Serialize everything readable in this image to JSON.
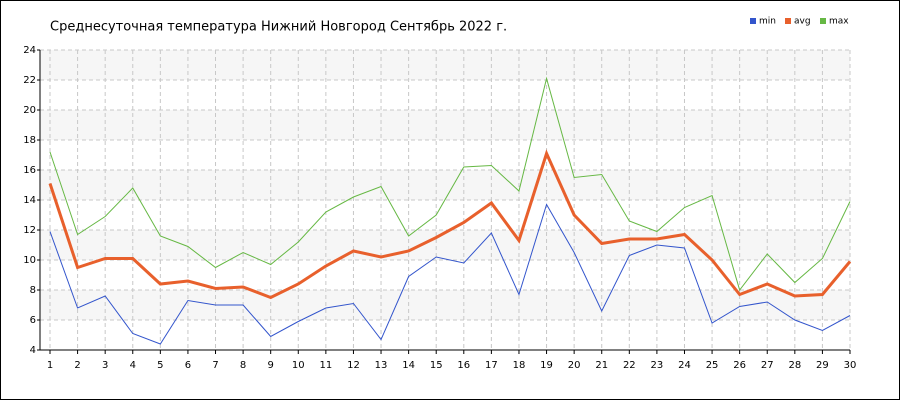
{
  "chart_data": {
    "type": "line",
    "title": "Среднесуточная температура Нижний Новгород  Сентябрь 2022 г.",
    "x": [
      1,
      2,
      3,
      4,
      5,
      6,
      7,
      8,
      9,
      10,
      11,
      12,
      13,
      14,
      15,
      16,
      17,
      18,
      19,
      20,
      21,
      22,
      23,
      24,
      25,
      26,
      27,
      28,
      29,
      30
    ],
    "series": [
      {
        "name": "min",
        "color": "#3355cc",
        "values": [
          11.9,
          6.8,
          7.6,
          5.1,
          4.4,
          7.3,
          7.0,
          7.0,
          4.9,
          5.9,
          6.8,
          7.1,
          4.7,
          8.9,
          10.2,
          9.8,
          11.8,
          7.7,
          13.7,
          10.5,
          6.6,
          10.3,
          11.0,
          10.8,
          5.8,
          6.9,
          7.2,
          6.0,
          5.3,
          6.3
        ]
      },
      {
        "name": "avg",
        "color": "#e8602c",
        "values": [
          15.1,
          9.5,
          10.1,
          10.1,
          8.4,
          8.6,
          8.1,
          8.2,
          7.5,
          8.4,
          9.6,
          10.6,
          10.2,
          10.6,
          11.5,
          12.5,
          13.8,
          11.3,
          17.1,
          13.0,
          11.1,
          11.4,
          11.4,
          11.7,
          10.0,
          7.7,
          8.4,
          7.6,
          7.7,
          9.9
        ]
      },
      {
        "name": "max",
        "color": "#66b844",
        "values": [
          17.2,
          11.7,
          12.9,
          14.8,
          11.6,
          10.9,
          9.5,
          10.5,
          9.7,
          11.2,
          13.2,
          14.2,
          14.9,
          11.6,
          13.0,
          16.2,
          16.3,
          14.6,
          22.1,
          15.5,
          15.7,
          12.6,
          11.9,
          13.5,
          14.3,
          8.0,
          10.4,
          8.5,
          10.1,
          13.9
        ]
      }
    ],
    "xlim": [
      1,
      30
    ],
    "xticks": [
      1,
      2,
      3,
      4,
      5,
      6,
      7,
      8,
      9,
      10,
      11,
      12,
      13,
      14,
      15,
      16,
      17,
      18,
      19,
      20,
      21,
      22,
      23,
      24,
      25,
      26,
      27,
      28,
      29,
      30
    ],
    "ylim": [
      4,
      24
    ],
    "yticks": [
      4,
      6,
      8,
      10,
      12,
      14,
      16,
      18,
      20,
      22,
      24
    ],
    "grid": true,
    "legend": "top-right"
  }
}
